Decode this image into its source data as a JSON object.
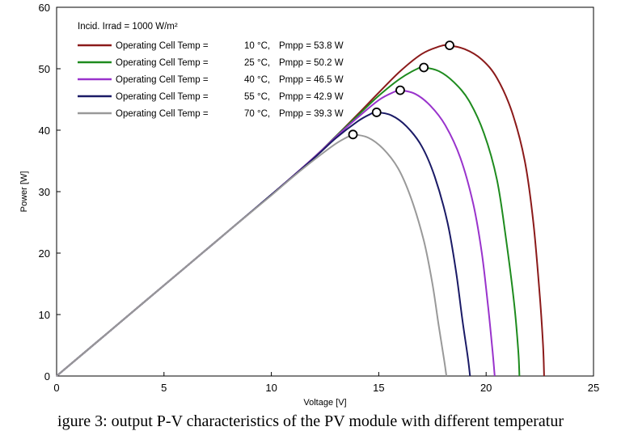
{
  "chart_data": {
    "type": "line",
    "title": "",
    "xlabel": "Voltage [V]",
    "ylabel": "Power [W]",
    "xlim": [
      0,
      25
    ],
    "ylim": [
      0,
      60
    ],
    "xticks": [
      0,
      5,
      10,
      15,
      20,
      25
    ],
    "yticks": [
      0,
      10,
      20,
      30,
      40,
      50,
      60
    ],
    "grid": false,
    "legend_header": "Incid. Irrad = 1000 W/m²",
    "legend_position": "top-left",
    "series": [
      {
        "name": "Operating Cell Temp = 10 °C, Pmpp = 53.8 W",
        "temp": "10",
        "pmpp": "53.8",
        "color": "#8b1a1a",
        "points": [
          [
            0,
            0
          ],
          [
            2,
            5.9
          ],
          [
            4,
            11.8
          ],
          [
            6,
            17.7
          ],
          [
            8,
            23.6
          ],
          [
            10,
            29.5
          ],
          [
            12,
            35.6
          ],
          [
            13,
            39.0
          ],
          [
            14,
            42.5
          ],
          [
            15,
            46.1
          ],
          [
            16,
            49.6
          ],
          [
            17,
            52.4
          ],
          [
            17.8,
            53.6
          ],
          [
            18.2,
            53.8
          ],
          [
            19,
            53.2
          ],
          [
            19.8,
            51.5
          ],
          [
            20.5,
            48.5
          ],
          [
            21.2,
            43.0
          ],
          [
            21.8,
            35.0
          ],
          [
            22.2,
            25.0
          ],
          [
            22.5,
            13.0
          ],
          [
            22.65,
            5.0
          ],
          [
            22.7,
            0
          ]
        ],
        "mpp": [
          18.3,
          53.8
        ]
      },
      {
        "name": "Operating Cell Temp = 25 °C, Pmpp = 50.2 W",
        "temp": "25",
        "pmpp": "50.2",
        "color": "#1e8b1e",
        "points": [
          [
            0,
            0
          ],
          [
            2,
            5.9
          ],
          [
            4,
            11.8
          ],
          [
            6,
            17.7
          ],
          [
            8,
            23.6
          ],
          [
            10,
            29.5
          ],
          [
            12,
            35.6
          ],
          [
            13,
            39.0
          ],
          [
            14,
            42.3
          ],
          [
            15,
            45.6
          ],
          [
            16,
            48.4
          ],
          [
            16.8,
            50.0
          ],
          [
            17.1,
            50.2
          ],
          [
            17.8,
            49.6
          ],
          [
            18.5,
            47.8
          ],
          [
            19.2,
            44.8
          ],
          [
            19.9,
            39.5
          ],
          [
            20.5,
            32.0
          ],
          [
            20.9,
            23.0
          ],
          [
            21.3,
            12.0
          ],
          [
            21.5,
            4.0
          ],
          [
            21.55,
            0
          ]
        ],
        "mpp": [
          17.1,
          50.2
        ]
      },
      {
        "name": "Operating Cell Temp = 40 °C, Pmpp = 46.5 W",
        "temp": "40",
        "pmpp": "46.5",
        "color": "#9933cc",
        "points": [
          [
            0,
            0
          ],
          [
            2,
            5.9
          ],
          [
            4,
            11.8
          ],
          [
            6,
            17.7
          ],
          [
            8,
            23.6
          ],
          [
            10,
            29.5
          ],
          [
            12,
            35.6
          ],
          [
            13,
            38.9
          ],
          [
            14,
            42.0
          ],
          [
            15,
            44.9
          ],
          [
            15.7,
            46.2
          ],
          [
            16.0,
            46.5
          ],
          [
            16.7,
            45.9
          ],
          [
            17.4,
            44.0
          ],
          [
            18.1,
            40.8
          ],
          [
            18.8,
            35.5
          ],
          [
            19.4,
            28.0
          ],
          [
            19.8,
            20.0
          ],
          [
            20.1,
            11.0
          ],
          [
            20.3,
            4.0
          ],
          [
            20.4,
            0
          ]
        ],
        "mpp": [
          16.0,
          46.5
        ]
      },
      {
        "name": "Operating Cell Temp = 55 °C, Pmpp = 42.9 W",
        "temp": "55",
        "pmpp": "42.9",
        "color": "#1a1a66",
        "points": [
          [
            0,
            0
          ],
          [
            2,
            5.9
          ],
          [
            4,
            11.8
          ],
          [
            6,
            17.7
          ],
          [
            8,
            23.6
          ],
          [
            10,
            29.5
          ],
          [
            12,
            35.5
          ],
          [
            13,
            38.7
          ],
          [
            14,
            41.4
          ],
          [
            14.6,
            42.6
          ],
          [
            14.9,
            42.9
          ],
          [
            15.6,
            42.4
          ],
          [
            16.3,
            40.6
          ],
          [
            17.0,
            37.4
          ],
          [
            17.6,
            32.5
          ],
          [
            18.2,
            25.0
          ],
          [
            18.6,
            17.0
          ],
          [
            18.9,
            9.0
          ],
          [
            19.15,
            3.0
          ],
          [
            19.25,
            0
          ]
        ],
        "mpp": [
          14.9,
          42.9
        ]
      },
      {
        "name": "Operating Cell Temp = 70 °C, Pmpp = 39.3 W",
        "temp": "70",
        "pmpp": "39.3",
        "color": "#999999",
        "points": [
          [
            0,
            0
          ],
          [
            2,
            5.9
          ],
          [
            4,
            11.8
          ],
          [
            6,
            17.7
          ],
          [
            8,
            23.6
          ],
          [
            10,
            29.4
          ],
          [
            11,
            32.4
          ],
          [
            12,
            35.2
          ],
          [
            13,
            37.8
          ],
          [
            13.6,
            39.0
          ],
          [
            13.8,
            39.3
          ],
          [
            14.5,
            38.8
          ],
          [
            15.2,
            37.0
          ],
          [
            15.9,
            33.8
          ],
          [
            16.5,
            29.0
          ],
          [
            17.1,
            22.0
          ],
          [
            17.5,
            15.0
          ],
          [
            17.8,
            8.0
          ],
          [
            18.05,
            2.5
          ],
          [
            18.15,
            0
          ]
        ],
        "mpp": [
          13.8,
          39.3
        ]
      }
    ]
  },
  "legend": {
    "header": "Incid. Irrad = 1000 W/m²",
    "items": [
      {
        "label": "Operating Cell Temp =",
        "temp_text": "10 °C,",
        "pmpp_text": "Pmpp =  53.8 W"
      },
      {
        "label": "Operating Cell Temp =",
        "temp_text": "25 °C,",
        "pmpp_text": "Pmpp =  50.2 W"
      },
      {
        "label": "Operating Cell Temp =",
        "temp_text": "40 °C,",
        "pmpp_text": "Pmpp =  46.5 W"
      },
      {
        "label": "Operating Cell Temp =",
        "temp_text": "55 °C,",
        "pmpp_text": "Pmpp =  42.9 W"
      },
      {
        "label": "Operating Cell Temp =",
        "temp_text": "70 °C,",
        "pmpp_text": "Pmpp =  39.3 W"
      }
    ]
  },
  "caption": "igure 3: output P-V characteristics of the PV module with different temperatur"
}
